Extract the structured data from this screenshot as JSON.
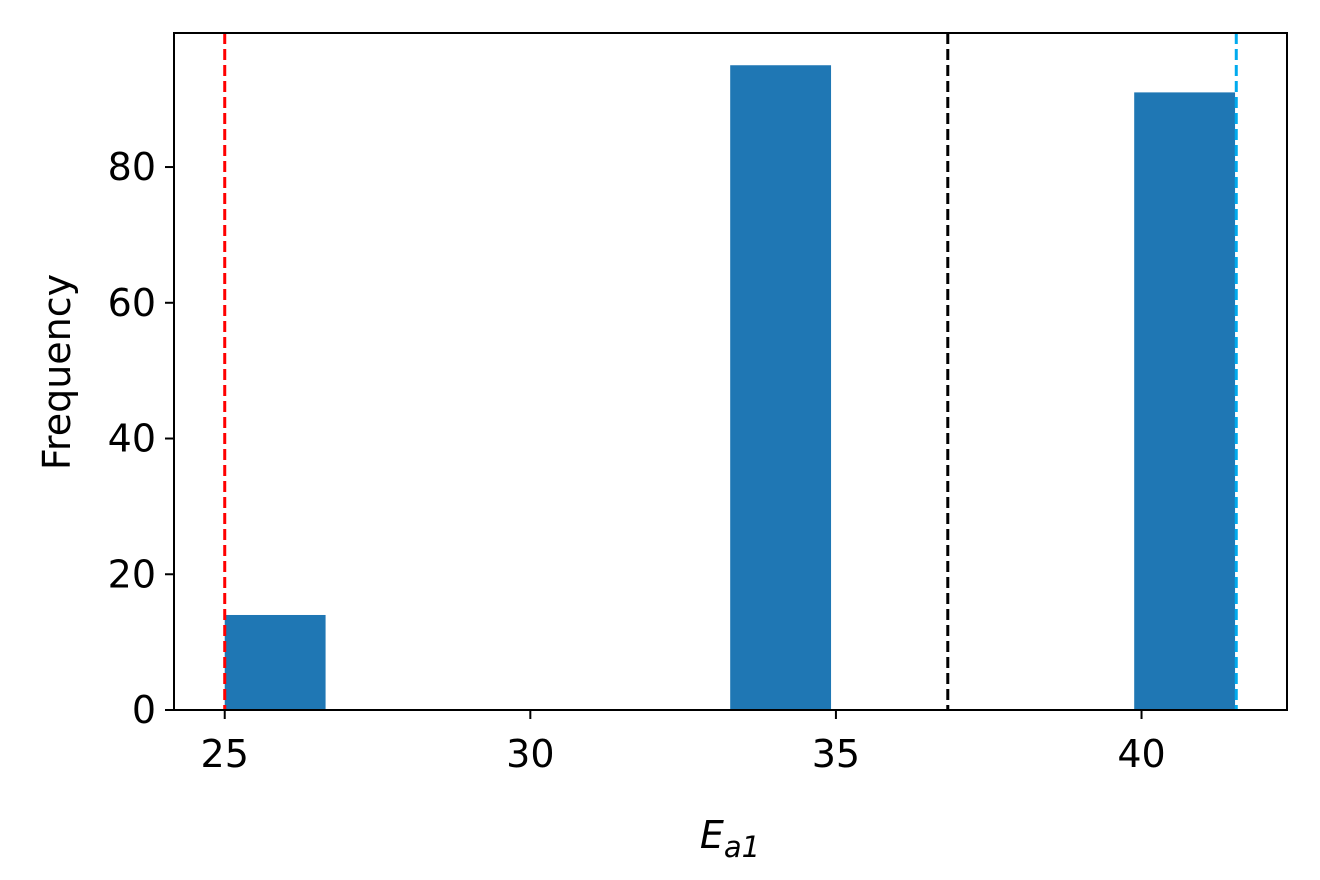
{
  "chart_data": {
    "type": "bar",
    "title": "",
    "xlabel_main": "E",
    "xlabel_sub": "a1",
    "ylabel": "Frequency",
    "xlim": [
      24.17,
      42.38
    ],
    "ylim": [
      0,
      99.75
    ],
    "xticks": [
      25,
      30,
      35,
      40
    ],
    "yticks": [
      0,
      20,
      40,
      60,
      80
    ],
    "bars": [
      {
        "x0": 25.0,
        "x1": 26.65,
        "value": 14
      },
      {
        "x0": 26.65,
        "x1": 28.31,
        "value": 0
      },
      {
        "x0": 28.31,
        "x1": 29.96,
        "value": 0
      },
      {
        "x0": 29.96,
        "x1": 31.61,
        "value": 0
      },
      {
        "x0": 31.61,
        "x1": 33.27,
        "value": 0
      },
      {
        "x0": 33.27,
        "x1": 34.92,
        "value": 95
      },
      {
        "x0": 34.92,
        "x1": 36.57,
        "value": 0
      },
      {
        "x0": 36.57,
        "x1": 38.23,
        "value": 0
      },
      {
        "x0": 38.23,
        "x1": 39.88,
        "value": 0
      },
      {
        "x0": 39.88,
        "x1": 41.53,
        "value": 91
      }
    ],
    "bar_color": "#1f77b4",
    "vlines": [
      {
        "x": 25.0,
        "color": "#ff0000",
        "style": "dashed"
      },
      {
        "x": 36.83,
        "color": "#000000",
        "style": "dashed"
      },
      {
        "x": 41.55,
        "color": "#00aaee",
        "style": "dashed"
      }
    ],
    "grid": false,
    "legend": "none"
  }
}
